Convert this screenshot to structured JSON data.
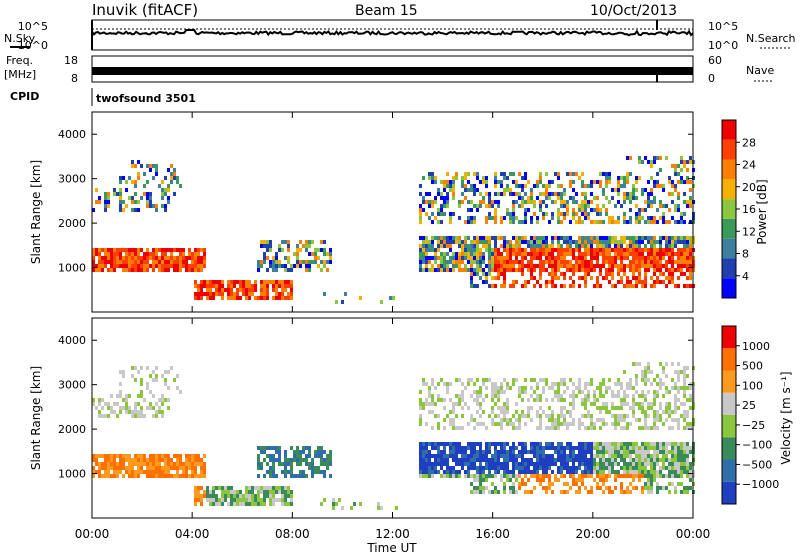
{
  "header": {
    "station": "Inuvik (fitACF)",
    "beam": "Beam 15",
    "date": "10/Oct/2013"
  },
  "chart_data": [
    {
      "type": "line",
      "panel": "noise",
      "ylabel_left": "N.Sky",
      "ylabel_right": "N.Search",
      "y_ticks_left": [
        "10^5",
        "10^0"
      ],
      "y_ticks_right": [
        "10^5",
        "10^0"
      ]
    },
    {
      "type": "line",
      "panel": "freq",
      "ylabel_left_1": "Freq.",
      "ylabel_left_2": "[MHz]",
      "ylabel_right": "Nave",
      "y_ticks_left": [
        "18",
        "8"
      ],
      "y_ticks_right": [
        "60",
        "0"
      ],
      "cpid_label": "CPID",
      "cpid_text": "twofsound 3501"
    },
    {
      "type": "heatmap",
      "panel": "power",
      "ylabel": "Slant Range [km]",
      "y_ticks": [
        "1000",
        "2000",
        "3000",
        "4000"
      ],
      "colorbar_label": "Power [dB]",
      "colorbar_ticks": [
        "28",
        "24",
        "20",
        "16",
        "12",
        "8",
        "4"
      ],
      "colors": [
        "#0000ff",
        "#2040b0",
        "#3f7f9e",
        "#3a9a5a",
        "#8cc63f",
        "#f5b000",
        "#ff7f00",
        "#ff4000",
        "#ee0000"
      ]
    },
    {
      "type": "heatmap",
      "panel": "velocity",
      "ylabel": "Slant Range [km]",
      "y_ticks": [
        "1000",
        "2000",
        "3000",
        "4000"
      ],
      "colorbar_label": "Velocity [m s⁻¹]",
      "colorbar_ticks": [
        "1000",
        "500",
        "100",
        "25",
        "−25",
        "−100",
        "−500",
        "−1000"
      ],
      "colors": [
        "#1e3fbf",
        "#2f6ea8",
        "#3a8a5a",
        "#8cc63f",
        "#c8c8c8",
        "#ff9a20",
        "#ff7000",
        "#ee0000"
      ]
    }
  ],
  "x_axis": {
    "ticks": [
      "00:00",
      "04:00",
      "08:00",
      "12:00",
      "16:00",
      "20:00",
      "00:00"
    ],
    "label": "Time UT"
  }
}
